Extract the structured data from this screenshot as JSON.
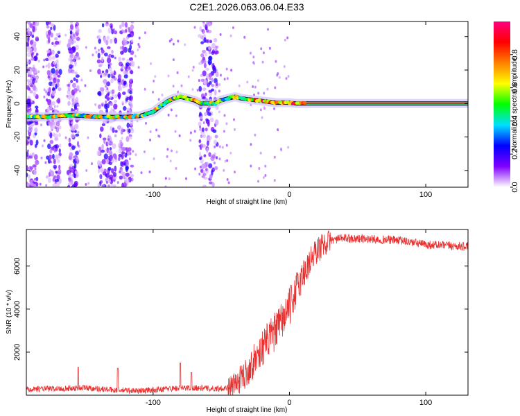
{
  "title": "C2E1.2026.063.06.04.E33",
  "chart_data": [
    {
      "type": "heatmap",
      "name": "spectrogram",
      "xlabel": "Height of straight line (km)",
      "ylabel": "Frequency (Hz)",
      "xlim": [
        -193,
        131
      ],
      "ylim": [
        -50,
        49
      ],
      "xticks": [
        -100,
        0,
        100
      ],
      "xtick_labels": [
        "-100",
        "0",
        "100"
      ],
      "yticks": [
        -40,
        -20,
        0,
        20,
        40
      ],
      "ytick_labels": [
        "-40",
        "-20",
        "0",
        "20",
        "40"
      ],
      "ridge": {
        "x": [
          -193,
          -180,
          -160,
          -140,
          -130,
          -120,
          -110,
          -100,
          -95,
          -90,
          -85,
          -80,
          -75,
          -70,
          -65,
          -60,
          -55,
          -50,
          -45,
          -40,
          -35,
          -30,
          -25,
          -20,
          -15,
          -10,
          -5,
          0,
          5,
          10,
          20,
          40,
          60,
          80,
          100,
          131
        ],
        "freq": [
          -8,
          -8,
          -7,
          -8,
          -8,
          -8,
          -7.5,
          -5,
          -2,
          1,
          3,
          4,
          3,
          2,
          0,
          0,
          0,
          2,
          3,
          4,
          3,
          2.5,
          2,
          1.5,
          1,
          0.5,
          0.5,
          0.5,
          0,
          0,
          0,
          0,
          0,
          0,
          0,
          0
        ]
      },
      "noise_bands": [
        [
          -193,
          -185
        ],
        [
          -178,
          -168
        ],
        [
          -162,
          -155
        ],
        [
          -140,
          -127
        ],
        [
          -125,
          -115
        ],
        [
          -66,
          -53
        ]
      ],
      "colorbar": {
        "label": "Normalized spectral amplitude",
        "range": [
          0,
          1
        ],
        "ticks": [
          0.0,
          0.2,
          0.4,
          0.6,
          0.8
        ],
        "tick_labels": [
          "0.0",
          "0.2",
          "0.4",
          "0.6",
          "0.8"
        ],
        "colors": [
          "#ffffff",
          "#8000ff",
          "#0000ff",
          "#00e0ff",
          "#00ff00",
          "#ffff00",
          "#ff8000",
          "#ff0000",
          "#ff0080"
        ]
      }
    },
    {
      "type": "line",
      "name": "snr",
      "xlabel": "Height of straight line (km)",
      "ylabel": "SNR (10 * v/v)",
      "xlim": [
        -193,
        131
      ],
      "ylim": [
        0,
        7700
      ],
      "xticks": [
        -100,
        0,
        100
      ],
      "xtick_labels": [
        "-100",
        "0",
        "100"
      ],
      "yticks": [
        2000,
        4000,
        6000
      ],
      "ytick_labels": [
        "2000",
        "4000",
        "6000"
      ],
      "color": "#e83030",
      "trend": {
        "x": [
          -193,
          -170,
          -150,
          -130,
          -110,
          -90,
          -70,
          -55,
          -45,
          -40,
          -35,
          -30,
          -25,
          -20,
          -15,
          -10,
          -5,
          0,
          5,
          10,
          15,
          20,
          25,
          30,
          40,
          60,
          80,
          100,
          131
        ],
        "y": [
          300,
          300,
          350,
          250,
          200,
          300,
          350,
          300,
          350,
          500,
          800,
          1200,
          1700,
          2200,
          2600,
          3000,
          3500,
          4100,
          4900,
          5600,
          6200,
          6700,
          7000,
          7200,
          7300,
          7250,
          7200,
          7000,
          6900
        ]
      },
      "spikes": [
        {
          "x": -155,
          "y": 1300
        },
        {
          "x": -126,
          "y": 1250
        },
        {
          "x": -80,
          "y": 1500
        },
        {
          "x": -72,
          "y": 1050
        }
      ]
    }
  ]
}
